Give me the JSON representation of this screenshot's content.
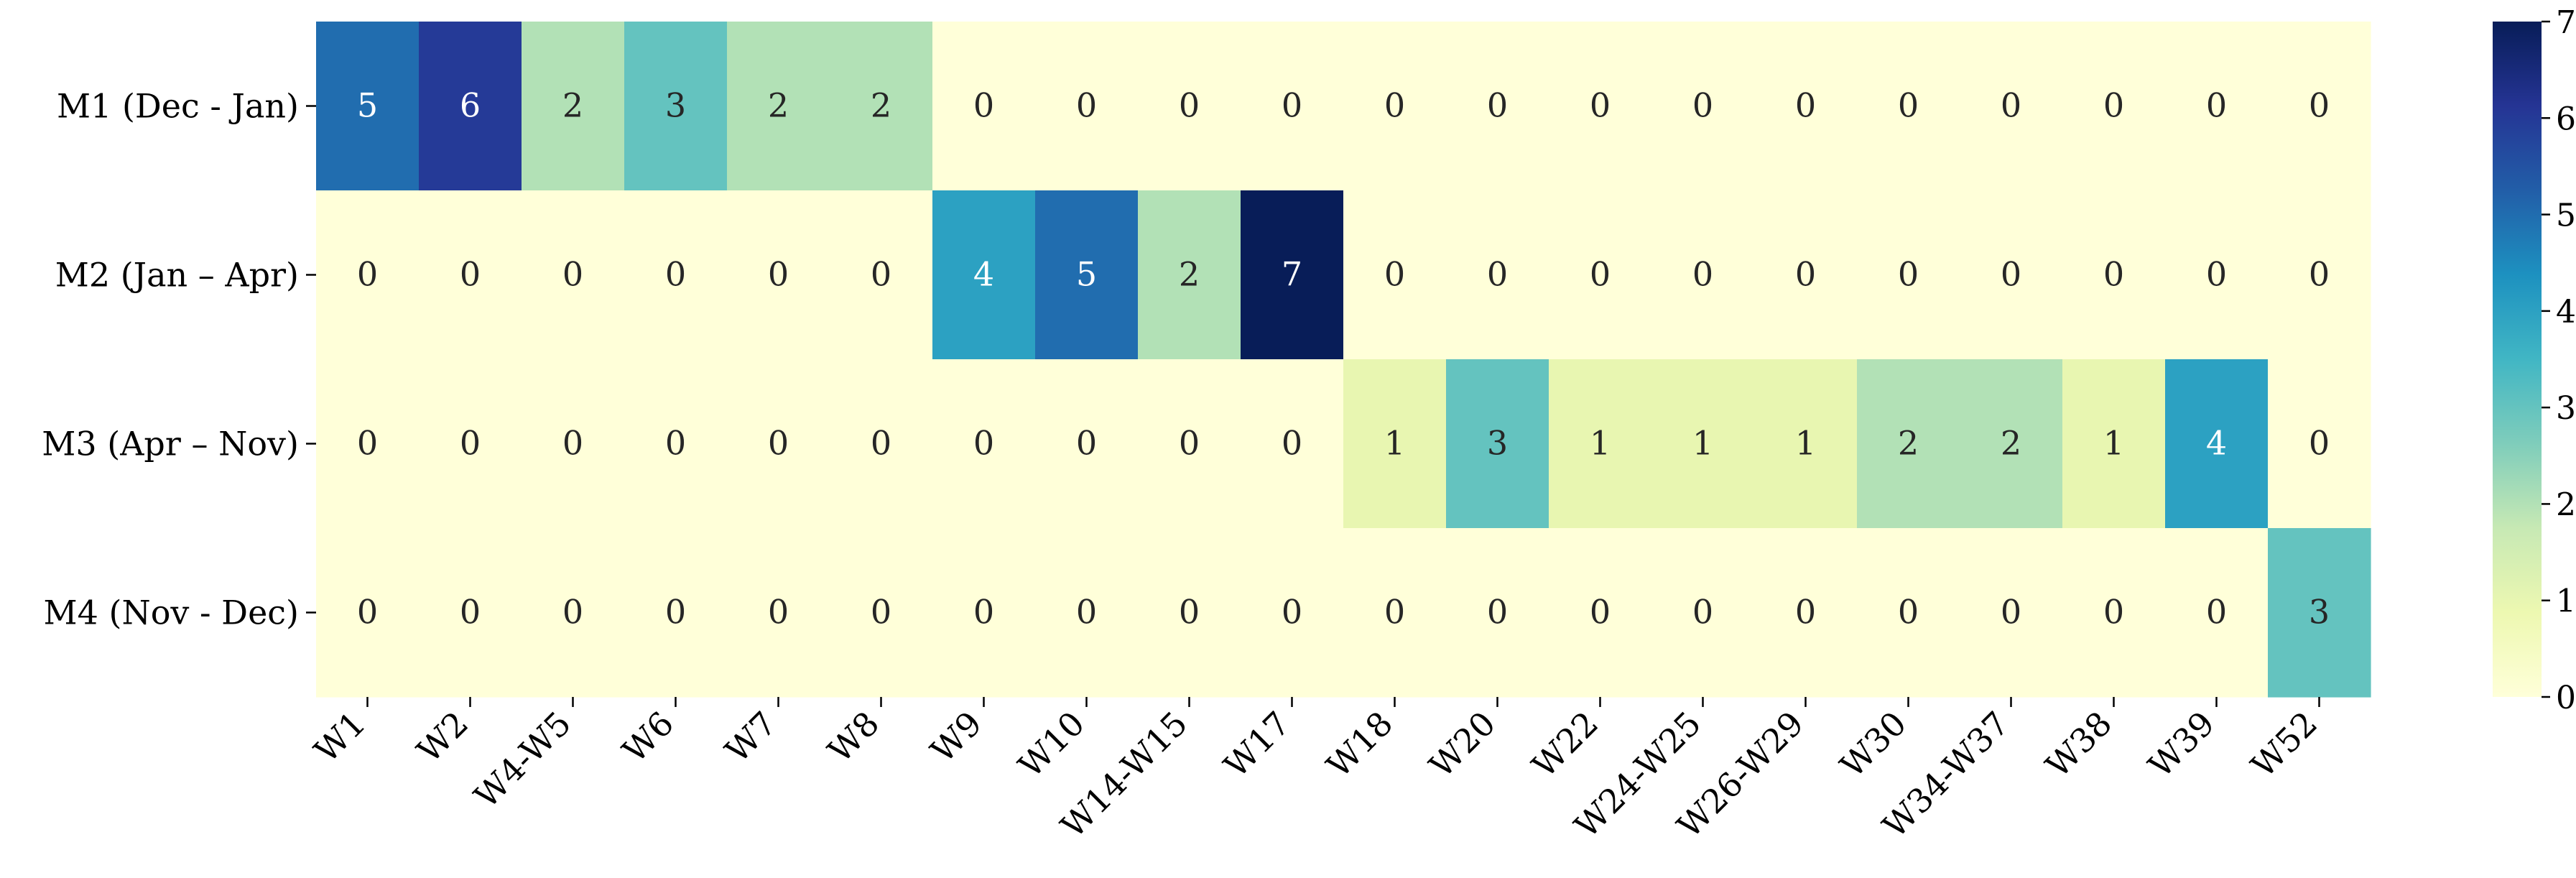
{
  "chart_data": {
    "type": "heatmap",
    "x_categories": [
      "W1",
      "W2",
      "W4-W5",
      "W6",
      "W7",
      "W8",
      "W9",
      "W10",
      "W14-W15",
      "W17",
      "W18",
      "W20",
      "W22",
      "W24-W25",
      "W26-W29",
      "W30",
      "W34-W37",
      "W38",
      "W39",
      "W52"
    ],
    "y_categories": [
      "M1 (Dec - Jan)",
      "M2 (Jan – Apr)",
      "M3 (Apr – Nov)",
      "M4 (Nov - Dec)"
    ],
    "values": [
      [
        5,
        6,
        2,
        3,
        2,
        2,
        0,
        0,
        0,
        0,
        0,
        0,
        0,
        0,
        0,
        0,
        0,
        0,
        0,
        0
      ],
      [
        0,
        0,
        0,
        0,
        0,
        0,
        4,
        5,
        2,
        7,
        0,
        0,
        0,
        0,
        0,
        0,
        0,
        0,
        0,
        0
      ],
      [
        0,
        0,
        0,
        0,
        0,
        0,
        0,
        0,
        0,
        0,
        1,
        3,
        1,
        1,
        1,
        2,
        2,
        1,
        4,
        0
      ],
      [
        0,
        0,
        0,
        0,
        0,
        0,
        0,
        0,
        0,
        0,
        0,
        0,
        0,
        0,
        0,
        0,
        0,
        0,
        0,
        3
      ]
    ],
    "colorbar": {
      "min": 0,
      "max": 7,
      "ticks": [
        0,
        1,
        2,
        3,
        4,
        5,
        6,
        7
      ],
      "colormap": "YlGnBu"
    },
    "annotations": true,
    "title": "",
    "xlabel": "",
    "ylabel": ""
  }
}
